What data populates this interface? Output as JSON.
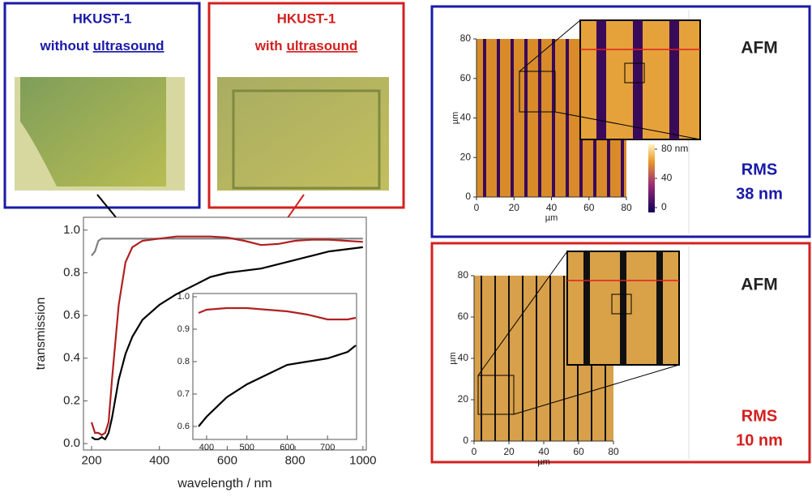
{
  "photos": [
    {
      "title": "HKUST-1",
      "condition": "without",
      "method": "ultrasound",
      "color": "#1a1aa8"
    },
    {
      "title": "HKUST-1",
      "condition": "with",
      "method": "ultrasound",
      "color": "#d42020"
    }
  ],
  "chart_data": [
    {
      "type": "line",
      "xlabel": "wavelength / nm",
      "ylabel": "transmission",
      "xlim": [
        176,
        1010
      ],
      "xticks": [
        200,
        400,
        600,
        800,
        1000
      ],
      "ylim": [
        -0.03,
        1.06
      ],
      "yticks": [
        {
          "value": 0,
          "label": "0.0"
        },
        0.2,
        0.4,
        0.6,
        0.8,
        {
          "value": 1,
          "label": "1.0"
        }
      ],
      "x": [
        200,
        210,
        220,
        230,
        240,
        250,
        260,
        280,
        300,
        320,
        350,
        400,
        450,
        500,
        550,
        600,
        650,
        700,
        750,
        800,
        850,
        900,
        950,
        1000
      ],
      "series": [
        {
          "color": "#808080",
          "values": [
            0.88,
            0.9,
            0.95,
            0.96,
            0.96,
            0.96,
            0.96,
            0.96,
            0.96,
            0.96,
            0.96,
            0.96,
            0.96,
            0.96,
            0.96,
            0.96,
            0.96,
            0.96,
            0.96,
            0.96,
            0.96,
            0.96,
            0.96,
            0.96
          ]
        },
        {
          "color": "#b02020",
          "values": [
            0.1,
            0.05,
            0.05,
            0.04,
            0.05,
            0.1,
            0.3,
            0.65,
            0.85,
            0.92,
            0.95,
            0.96,
            0.97,
            0.97,
            0.97,
            0.965,
            0.95,
            0.93,
            0.935,
            0.95,
            0.955,
            0.955,
            0.95,
            0.945
          ]
        },
        {
          "color": "#000000",
          "values": [
            0.03,
            0.02,
            0.02,
            0.03,
            0.02,
            0.05,
            0.12,
            0.3,
            0.42,
            0.5,
            0.58,
            0.65,
            0.7,
            0.74,
            0.78,
            0.8,
            0.81,
            0.82,
            0.84,
            0.86,
            0.88,
            0.9,
            0.91,
            0.92
          ]
        }
      ]
    },
    {
      "type": "line",
      "xlim": [
        366,
        772
      ],
      "xticks": [
        400,
        500,
        600,
        700
      ],
      "ylim": [
        0.56,
        1.01
      ],
      "yticks": [
        0.6,
        0.7,
        0.8,
        0.9,
        {
          "value": 1,
          "label": "1.0"
        }
      ],
      "x": [
        380,
        400,
        450,
        500,
        550,
        600,
        650,
        700,
        750,
        770
      ],
      "series": [
        {
          "color": "#b02020",
          "values": [
            0.95,
            0.96,
            0.965,
            0.965,
            0.96,
            0.955,
            0.945,
            0.93,
            0.93,
            0.935
          ]
        },
        {
          "color": "#000000",
          "values": [
            0.6,
            0.63,
            0.69,
            0.73,
            0.76,
            0.79,
            0.8,
            0.81,
            0.83,
            0.85
          ]
        }
      ]
    }
  ],
  "afm": [
    {
      "title": "AFM",
      "x_label": "µm",
      "y_label": "µm",
      "xlim": [
        0,
        80
      ],
      "ylim": [
        0,
        80
      ],
      "xticks": [
        0,
        20,
        40,
        60,
        80
      ],
      "yticks": [
        0,
        20,
        40,
        60,
        80
      ],
      "colorbar_ticks": [
        {
          "value": 80,
          "label": "80 nm"
        },
        40,
        0
      ],
      "rms_label": "RMS",
      "rms": "38 nm",
      "color": "#1a1aa8"
    },
    {
      "title": "AFM",
      "x_label": "µm",
      "y_label": "µm",
      "xlim": [
        0,
        80
      ],
      "ylim": [
        0,
        80
      ],
      "xticks": [
        0,
        20,
        40,
        60,
        80
      ],
      "yticks": [
        0,
        20,
        40,
        60,
        80
      ],
      "rms_label": "RMS",
      "rms": "10 nm",
      "color": "#d42020"
    }
  ]
}
